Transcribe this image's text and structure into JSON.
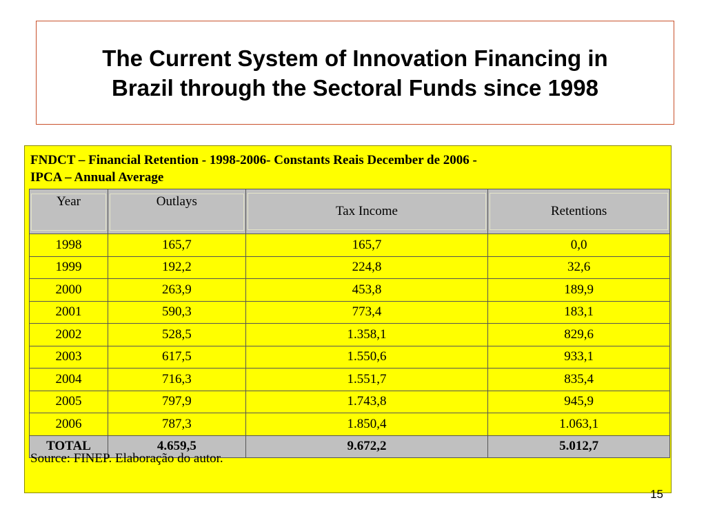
{
  "slide": {
    "title_line1": "The Current System of Innovation Financing in",
    "title_line2": "Brazil through the Sectoral Funds since 1998",
    "page_number": "15"
  },
  "table": {
    "caption_line1": "FNDCT – Financial Retention - 1998-2006- Constants Reais December de 2006 -",
    "caption_line2": "IPCA – Annual Average",
    "headers": [
      "Year",
      "Outlays",
      "Tax Income",
      "Retentions"
    ],
    "rows": [
      [
        "1998",
        "165,7",
        "165,7",
        "0,0"
      ],
      [
        "1999",
        "192,2",
        "224,8",
        "32,6"
      ],
      [
        "2000",
        "263,9",
        "453,8",
        "189,9"
      ],
      [
        "2001",
        "590,3",
        "773,4",
        "183,1"
      ],
      [
        "2002",
        "528,5",
        "1.358,1",
        "829,6"
      ],
      [
        "2003",
        "617,5",
        "1.550,6",
        "933,1"
      ],
      [
        "2004",
        "716,3",
        "1.551,7",
        "835,4"
      ],
      [
        "2005",
        "797,9",
        "1.743,8",
        "945,9"
      ],
      [
        "2006",
        "787,3",
        "1.850,4",
        "1.063,1"
      ]
    ],
    "total": [
      "TOTAL",
      "4.659,5",
      "9.672,2",
      "5.012,7"
    ],
    "source": "Source: FINEP. Elaboração do autor."
  },
  "colors": {
    "panel_background": "#ffff00",
    "header_background": "#c0c0c0",
    "title_border": "#c8502a"
  }
}
